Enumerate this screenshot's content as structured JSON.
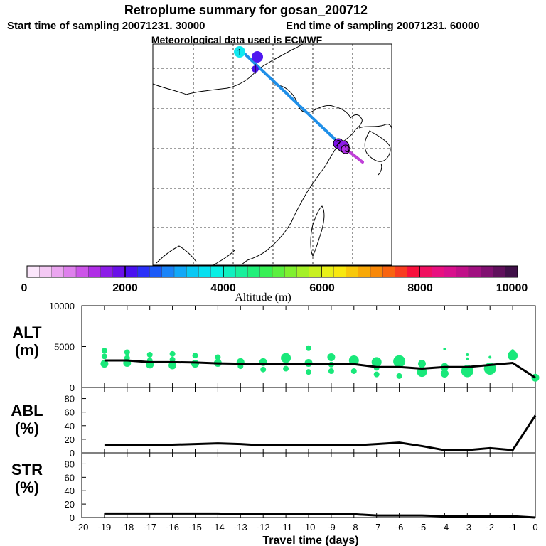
{
  "header": {
    "title": "Retroplume summary for gosan_200712",
    "start_label": "Start time of sampling 20071231. 30000",
    "end_label": "End time of sampling 20071231. 60000",
    "met_label": "Meteorological data used is ECMWF"
  },
  "map": {
    "track_color_main": "#1f8fe8",
    "track_color_end": "#c040d8",
    "marker_labels": [
      "1",
      "2",
      "3"
    ]
  },
  "colorbar": {
    "title": "Altitude (m)",
    "tick_labels": [
      "0",
      "2000",
      "4000",
      "6000",
      "8000",
      "10000"
    ],
    "colors": [
      "#fbe6fb",
      "#f4c9f4",
      "#eba6f0",
      "#de80ec",
      "#cc55e8",
      "#b02ee6",
      "#8d1ce8",
      "#6a10e8",
      "#4a10f0",
      "#2a30f8",
      "#1a5af8",
      "#1a84f8",
      "#12a8f8",
      "#0ac8f4",
      "#08e0f0",
      "#08f0e4",
      "#10f0c0",
      "#18f09c",
      "#20f07a",
      "#38f056",
      "#5cf040",
      "#80f030",
      "#a4f028",
      "#c8f020",
      "#e8f018",
      "#f8e810",
      "#f8c80c",
      "#f8a808",
      "#f88808",
      "#f86410",
      "#f83c20",
      "#f8103c",
      "#f01060",
      "#e81080",
      "#d8108c",
      "#c01088",
      "#a01080",
      "#801070",
      "#60105c",
      "#401048"
    ]
  },
  "chart_data": [
    {
      "type": "scatter",
      "name": "ALT",
      "ylabel": "ALT\n(m)",
      "ylabel_lines": [
        "ALT",
        "(m)"
      ],
      "ylim": [
        0,
        10000
      ],
      "xlim": [
        -20,
        0
      ],
      "yticks": [
        "0",
        "5000",
        "10000"
      ],
      "line_x": [
        -19,
        -18,
        -17,
        -16,
        -15,
        -14,
        -13,
        -12,
        -11,
        -10,
        -9,
        -8,
        -7,
        -6,
        -5,
        -4,
        -3,
        -2,
        -1,
        0
      ],
      "line_y": [
        3300,
        3300,
        3100,
        3100,
        3050,
        2950,
        2900,
        2850,
        2850,
        2850,
        2850,
        2850,
        2500,
        2500,
        2300,
        2500,
        2500,
        2750,
        3000,
        1200
      ],
      "points": [
        {
          "x": -19,
          "y": 4500,
          "s": 1
        },
        {
          "x": -19,
          "y": 3800,
          "s": 1
        },
        {
          "x": -19,
          "y": 2900,
          "s": 2
        },
        {
          "x": -18,
          "y": 4300,
          "s": 1
        },
        {
          "x": -18,
          "y": 3600,
          "s": 1
        },
        {
          "x": -18,
          "y": 3000,
          "s": 2
        },
        {
          "x": -17,
          "y": 4000,
          "s": 1
        },
        {
          "x": -17,
          "y": 3300,
          "s": 1
        },
        {
          "x": -17,
          "y": 2800,
          "s": 2
        },
        {
          "x": -16,
          "y": 4100,
          "s": 1
        },
        {
          "x": -16,
          "y": 3400,
          "s": 1
        },
        {
          "x": -16,
          "y": 2700,
          "s": 2
        },
        {
          "x": -15,
          "y": 3900,
          "s": 1
        },
        {
          "x": -15,
          "y": 2900,
          "s": 2
        },
        {
          "x": -14,
          "y": 3700,
          "s": 1
        },
        {
          "x": -14,
          "y": 3000,
          "s": 2
        },
        {
          "x": -13,
          "y": 2600,
          "s": 1
        },
        {
          "x": -13,
          "y": 3100,
          "s": 2
        },
        {
          "x": -12,
          "y": 2200,
          "s": 1
        },
        {
          "x": -12,
          "y": 3100,
          "s": 2
        },
        {
          "x": -11,
          "y": 2300,
          "s": 1
        },
        {
          "x": -11,
          "y": 3600,
          "s": 3
        },
        {
          "x": -10,
          "y": 4800,
          "s": 1
        },
        {
          "x": -10,
          "y": 1900,
          "s": 1
        },
        {
          "x": -10,
          "y": 3000,
          "s": 2
        },
        {
          "x": -9,
          "y": 2000,
          "s": 1
        },
        {
          "x": -9,
          "y": 2800,
          "s": 1
        },
        {
          "x": -9,
          "y": 3700,
          "s": 2
        },
        {
          "x": -8,
          "y": 2000,
          "s": 1
        },
        {
          "x": -8,
          "y": 3300,
          "s": 3
        },
        {
          "x": -7,
          "y": 1600,
          "s": 1
        },
        {
          "x": -7,
          "y": 2400,
          "s": 1
        },
        {
          "x": -7,
          "y": 3100,
          "s": 3
        },
        {
          "x": -6,
          "y": 1400,
          "s": 1
        },
        {
          "x": -6,
          "y": 3200,
          "s": 4
        },
        {
          "x": -5,
          "y": 2900,
          "s": 2
        },
        {
          "x": -5,
          "y": 1900,
          "s": 3
        },
        {
          "x": -4,
          "y": 4700,
          "s": 0
        },
        {
          "x": -4,
          "y": 2500,
          "s": 2
        },
        {
          "x": -4,
          "y": 1700,
          "s": 2
        },
        {
          "x": -3,
          "y": 4000,
          "s": 0
        },
        {
          "x": -3,
          "y": 3500,
          "s": 0
        },
        {
          "x": -3,
          "y": 2000,
          "s": 4
        },
        {
          "x": -2,
          "y": 3700,
          "s": 0
        },
        {
          "x": -2,
          "y": 2300,
          "s": 4
        },
        {
          "x": -1,
          "y": 4500,
          "s": 0
        },
        {
          "x": -1,
          "y": 3900,
          "s": 3
        },
        {
          "x": 0,
          "y": 1200,
          "s": 2
        }
      ]
    },
    {
      "type": "line",
      "name": "ABL",
      "ylabel_lines": [
        "ABL",
        "(%)"
      ],
      "ylim": [
        0,
        90
      ],
      "xlim": [
        -20,
        0
      ],
      "yticks": [
        "0",
        "20",
        "40",
        "60",
        "80"
      ],
      "x": [
        -19,
        -18,
        -17,
        -16,
        -15,
        -14,
        -13,
        -12,
        -11,
        -10,
        -9,
        -8,
        -7,
        -6,
        -5,
        -4,
        -3,
        -2,
        -1,
        0
      ],
      "y": [
        12,
        12,
        12,
        12,
        13,
        14,
        13,
        11,
        11,
        11,
        11,
        11,
        13,
        15,
        10,
        4,
        4,
        7,
        4,
        55
      ]
    },
    {
      "type": "line",
      "name": "STR",
      "ylabel_lines": [
        "STR",
        "(%)"
      ],
      "ylim": [
        0,
        90
      ],
      "xlim": [
        -20,
        0
      ],
      "yticks": [
        "0",
        "20",
        "40",
        "60",
        "80"
      ],
      "x": [
        -19,
        -18,
        -17,
        -16,
        -15,
        -14,
        -13,
        -12,
        -11,
        -10,
        -9,
        -8,
        -7,
        -6,
        -5,
        -4,
        -3,
        -2,
        -1,
        0
      ],
      "y": [
        6,
        6,
        6,
        6,
        6,
        6,
        5,
        5,
        5,
        5,
        5,
        5,
        3,
        3,
        3,
        2,
        2,
        2,
        2,
        0
      ]
    }
  ],
  "xaxis": {
    "label": "Travel time (days)",
    "ticks": [
      "-20",
      "-19",
      "-18",
      "-17",
      "-16",
      "-15",
      "-14",
      "-13",
      "-12",
      "-11",
      "-10",
      "-9",
      "-8",
      "-7",
      "-6",
      "-5",
      "-4",
      "-3",
      "-2",
      "-1",
      "0"
    ]
  },
  "colors": {
    "marker_green": "#19e87a",
    "line": "#000000"
  }
}
